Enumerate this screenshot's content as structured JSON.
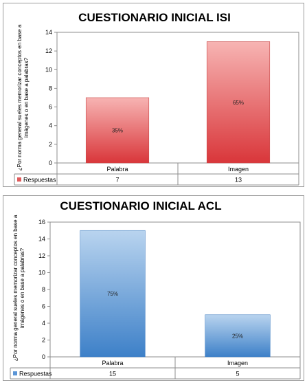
{
  "chart_data": [
    {
      "type": "bar",
      "title": "CUESTIONARIO INICIAL ISI",
      "ylabel": "¿Por norma general sueles memorizar conceptos en base a imágenes o en base a palabras?",
      "categories": [
        "Palabra",
        "Imagen"
      ],
      "series": [
        {
          "name": "Respuestas",
          "values": [
            7,
            13
          ],
          "data_labels": [
            "35%",
            "65%"
          ]
        }
      ],
      "ylim": [
        0,
        14
      ],
      "yticks": [
        0,
        2,
        4,
        6,
        8,
        10,
        12,
        14
      ],
      "grid": false,
      "legend": "data-table",
      "colors": {
        "bar_top": "#f7b4b3",
        "bar_bottom": "#d9363a",
        "bar_edge": "#c94a4a",
        "legend_key": "#e05b5c"
      }
    },
    {
      "type": "bar",
      "title": "CUESTIONARIO INICIAL ACL",
      "ylabel": "¿Por norma general sueles memorizar conceptos en base a imágenes o en base a palabras?",
      "categories": [
        "Palabra",
        "Imagen"
      ],
      "series": [
        {
          "name": "Respuestas",
          "values": [
            15,
            5
          ],
          "data_labels": [
            "75%",
            "25%"
          ]
        }
      ],
      "ylim": [
        0,
        16
      ],
      "yticks": [
        0,
        2,
        4,
        6,
        8,
        10,
        12,
        14,
        16
      ],
      "grid": false,
      "legend": "data-table",
      "colors": {
        "bar_top": "#b9d4ef",
        "bar_bottom": "#3d80c8",
        "bar_edge": "#4a84c4",
        "legend_key": "#5b95d6"
      }
    }
  ]
}
